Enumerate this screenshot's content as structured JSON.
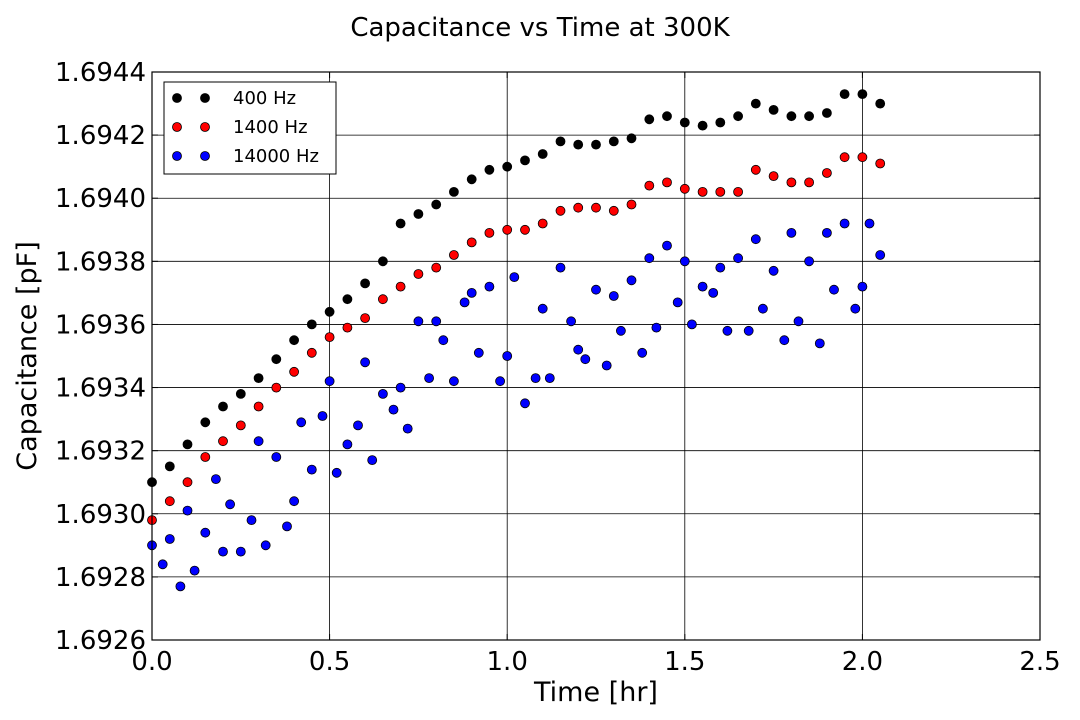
{
  "chart_data": {
    "type": "scatter",
    "title": "Capacitance vs Time at 300K",
    "xlabel": "Time [hr]",
    "ylabel": "Capacitance [pF]",
    "xlim": [
      0.0,
      2.5
    ],
    "ylim": [
      1.6926,
      1.6944
    ],
    "x_ticks": [
      "0.0",
      "0.5",
      "1.0",
      "1.5",
      "2.0",
      "2.5"
    ],
    "y_ticks": [
      "1.6926",
      "1.6928",
      "1.6930",
      "1.6932",
      "1.6934",
      "1.6936",
      "1.6938",
      "1.6940",
      "1.6942",
      "1.6944"
    ],
    "grid": true,
    "legend_position": "top-left",
    "series": [
      {
        "name": "400 Hz",
        "color": "#000000",
        "points": [
          [
            0.0,
            1.6931
          ],
          [
            0.05,
            1.69315
          ],
          [
            0.1,
            1.69322
          ],
          [
            0.15,
            1.69329
          ],
          [
            0.2,
            1.69334
          ],
          [
            0.25,
            1.69338
          ],
          [
            0.3,
            1.69343
          ],
          [
            0.35,
            1.69349
          ],
          [
            0.4,
            1.69355
          ],
          [
            0.45,
            1.6936
          ],
          [
            0.5,
            1.69364
          ],
          [
            0.55,
            1.69368
          ],
          [
            0.6,
            1.69373
          ],
          [
            0.65,
            1.6938
          ],
          [
            0.7,
            1.69392
          ],
          [
            0.75,
            1.69395
          ],
          [
            0.8,
            1.69398
          ],
          [
            0.85,
            1.69402
          ],
          [
            0.9,
            1.69406
          ],
          [
            0.95,
            1.69409
          ],
          [
            1.0,
            1.6941
          ],
          [
            1.05,
            1.69412
          ],
          [
            1.1,
            1.69414
          ],
          [
            1.15,
            1.69418
          ],
          [
            1.2,
            1.69417
          ],
          [
            1.25,
            1.69417
          ],
          [
            1.3,
            1.69418
          ],
          [
            1.35,
            1.69419
          ],
          [
            1.4,
            1.69425
          ],
          [
            1.45,
            1.69426
          ],
          [
            1.5,
            1.69424
          ],
          [
            1.55,
            1.69423
          ],
          [
            1.6,
            1.69424
          ],
          [
            1.65,
            1.69426
          ],
          [
            1.7,
            1.6943
          ],
          [
            1.75,
            1.69428
          ],
          [
            1.8,
            1.69426
          ],
          [
            1.85,
            1.69426
          ],
          [
            1.9,
            1.69427
          ],
          [
            1.95,
            1.69433
          ],
          [
            2.0,
            1.69433
          ],
          [
            2.05,
            1.6943
          ]
        ]
      },
      {
        "name": "1400 Hz",
        "color": "#ff0000",
        "points": [
          [
            0.0,
            1.69298
          ],
          [
            0.05,
            1.69304
          ],
          [
            0.1,
            1.6931
          ],
          [
            0.15,
            1.69318
          ],
          [
            0.2,
            1.69323
          ],
          [
            0.25,
            1.69328
          ],
          [
            0.3,
            1.69334
          ],
          [
            0.35,
            1.6934
          ],
          [
            0.4,
            1.69345
          ],
          [
            0.45,
            1.69351
          ],
          [
            0.5,
            1.69356
          ],
          [
            0.55,
            1.69359
          ],
          [
            0.6,
            1.69362
          ],
          [
            0.65,
            1.69368
          ],
          [
            0.7,
            1.69372
          ],
          [
            0.75,
            1.69376
          ],
          [
            0.8,
            1.69378
          ],
          [
            0.85,
            1.69382
          ],
          [
            0.9,
            1.69386
          ],
          [
            0.95,
            1.69389
          ],
          [
            1.0,
            1.6939
          ],
          [
            1.05,
            1.6939
          ],
          [
            1.1,
            1.69392
          ],
          [
            1.15,
            1.69396
          ],
          [
            1.2,
            1.69397
          ],
          [
            1.25,
            1.69397
          ],
          [
            1.3,
            1.69396
          ],
          [
            1.35,
            1.69398
          ],
          [
            1.4,
            1.69404
          ],
          [
            1.45,
            1.69405
          ],
          [
            1.5,
            1.69403
          ],
          [
            1.55,
            1.69402
          ],
          [
            1.6,
            1.69402
          ],
          [
            1.65,
            1.69402
          ],
          [
            1.7,
            1.69409
          ],
          [
            1.75,
            1.69407
          ],
          [
            1.8,
            1.69405
          ],
          [
            1.85,
            1.69405
          ],
          [
            1.9,
            1.69408
          ],
          [
            1.95,
            1.69413
          ],
          [
            2.0,
            1.69413
          ],
          [
            2.05,
            1.69411
          ]
        ]
      },
      {
        "name": "14000 Hz",
        "color": "#0000ff",
        "points": [
          [
            0.0,
            1.6929
          ],
          [
            0.03,
            1.69284
          ],
          [
            0.05,
            1.69292
          ],
          [
            0.08,
            1.69277
          ],
          [
            0.1,
            1.69301
          ],
          [
            0.12,
            1.69282
          ],
          [
            0.15,
            1.69294
          ],
          [
            0.18,
            1.69311
          ],
          [
            0.2,
            1.69288
          ],
          [
            0.22,
            1.69303
          ],
          [
            0.25,
            1.69288
          ],
          [
            0.28,
            1.69298
          ],
          [
            0.3,
            1.69323
          ],
          [
            0.32,
            1.6929
          ],
          [
            0.35,
            1.69318
          ],
          [
            0.38,
            1.69296
          ],
          [
            0.4,
            1.69304
          ],
          [
            0.42,
            1.69329
          ],
          [
            0.45,
            1.69314
          ],
          [
            0.48,
            1.69331
          ],
          [
            0.5,
            1.69342
          ],
          [
            0.52,
            1.69313
          ],
          [
            0.55,
            1.69322
          ],
          [
            0.58,
            1.69328
          ],
          [
            0.6,
            1.69348
          ],
          [
            0.62,
            1.69317
          ],
          [
            0.65,
            1.69338
          ],
          [
            0.68,
            1.69333
          ],
          [
            0.7,
            1.6934
          ],
          [
            0.72,
            1.69327
          ],
          [
            0.75,
            1.69361
          ],
          [
            0.78,
            1.69343
          ],
          [
            0.8,
            1.69361
          ],
          [
            0.82,
            1.69355
          ],
          [
            0.85,
            1.69342
          ],
          [
            0.88,
            1.69367
          ],
          [
            0.9,
            1.6937
          ],
          [
            0.92,
            1.69351
          ],
          [
            0.95,
            1.69372
          ],
          [
            0.98,
            1.69342
          ],
          [
            1.0,
            1.6935
          ],
          [
            1.02,
            1.69375
          ],
          [
            1.05,
            1.69335
          ],
          [
            1.08,
            1.69343
          ],
          [
            1.1,
            1.69365
          ],
          [
            1.12,
            1.69343
          ],
          [
            1.15,
            1.69378
          ],
          [
            1.18,
            1.69361
          ],
          [
            1.2,
            1.69352
          ],
          [
            1.22,
            1.69349
          ],
          [
            1.25,
            1.69371
          ],
          [
            1.28,
            1.69347
          ],
          [
            1.3,
            1.69369
          ],
          [
            1.32,
            1.69358
          ],
          [
            1.35,
            1.69374
          ],
          [
            1.38,
            1.69351
          ],
          [
            1.4,
            1.69381
          ],
          [
            1.42,
            1.69359
          ],
          [
            1.45,
            1.69385
          ],
          [
            1.48,
            1.69367
          ],
          [
            1.5,
            1.6938
          ],
          [
            1.52,
            1.6936
          ],
          [
            1.55,
            1.69372
          ],
          [
            1.58,
            1.6937
          ],
          [
            1.6,
            1.69378
          ],
          [
            1.62,
            1.69358
          ],
          [
            1.65,
            1.69381
          ],
          [
            1.68,
            1.69358
          ],
          [
            1.7,
            1.69387
          ],
          [
            1.72,
            1.69365
          ],
          [
            1.75,
            1.69377
          ],
          [
            1.78,
            1.69355
          ],
          [
            1.8,
            1.69389
          ],
          [
            1.82,
            1.69361
          ],
          [
            1.85,
            1.6938
          ],
          [
            1.88,
            1.69354
          ],
          [
            1.9,
            1.69389
          ],
          [
            1.92,
            1.69371
          ],
          [
            1.95,
            1.69392
          ],
          [
            1.98,
            1.69365
          ],
          [
            2.0,
            1.69372
          ],
          [
            2.02,
            1.69392
          ],
          [
            2.05,
            1.69382
          ]
        ]
      }
    ]
  }
}
